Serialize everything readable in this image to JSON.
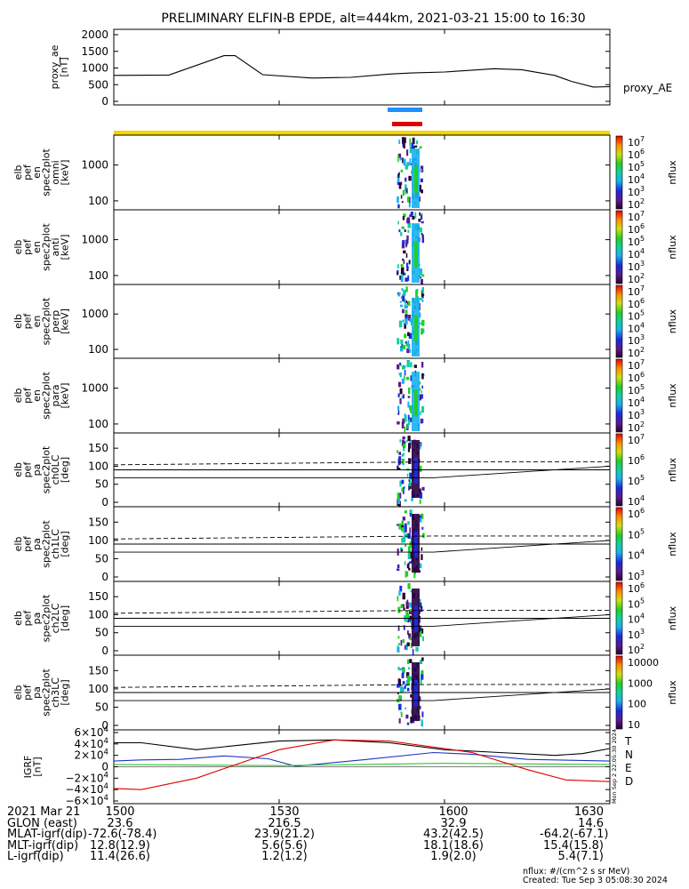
{
  "title": "PRELIMINARY ELFIN-B EPDE, alt=444km, 2021-03-21 15:00 to 16:30",
  "colors": {
    "blue_bar": "#1e90ff",
    "red_bar": "#e00000",
    "yellow_bar": "#f5d400",
    "igrf_T": "#000000",
    "igrf_N": "#1e33c8",
    "igrf_E": "#2ec52e",
    "igrf_D": "#e00000"
  },
  "chart_data": [
    {
      "id": "proxy_ae",
      "type": "line",
      "ylabel": "proxy_ae\n[nT]",
      "legend": "proxy_AE",
      "yticks": [
        "2000",
        "1500",
        "1000",
        "500",
        "0"
      ],
      "ylim": [
        0,
        2000
      ],
      "x_minutes": [
        0,
        10,
        20,
        22,
        27,
        36,
        43,
        50,
        54,
        60,
        69,
        74,
        80,
        83,
        87,
        90
      ],
      "values": [
        780,
        790,
        1370,
        1370,
        800,
        700,
        720,
        820,
        850,
        880,
        980,
        950,
        780,
        600,
        430,
        440
      ]
    },
    {
      "id": "spec_omni",
      "type": "heatmap",
      "ylabel": [
        "elb",
        "pef",
        "en",
        "spec2plot",
        "omni",
        "[keV]"
      ],
      "yticks": [
        "1000",
        "100"
      ],
      "scale": "log",
      "colorbar": {
        "label": "nflux",
        "ticks": [
          "10^7",
          "10^6",
          "10^5",
          "10^4",
          "10^3",
          "10^2"
        ]
      }
    },
    {
      "id": "spec_anti",
      "type": "heatmap",
      "ylabel": [
        "elb",
        "pef",
        "en",
        "spec2plot",
        "anti",
        "[keV]"
      ],
      "yticks": [
        "1000",
        "100"
      ],
      "scale": "log",
      "colorbar": {
        "label": "nflux",
        "ticks": [
          "10^7",
          "10^6",
          "10^5",
          "10^4",
          "10^3",
          "10^2"
        ]
      }
    },
    {
      "id": "spec_perp",
      "type": "heatmap",
      "ylabel": [
        "elb",
        "pef",
        "en",
        "spec2plot",
        "perp",
        "[keV]"
      ],
      "yticks": [
        "1000",
        "100"
      ],
      "scale": "log",
      "colorbar": {
        "label": "nflux",
        "ticks": [
          "10^7",
          "10^6",
          "10^5",
          "10^4",
          "10^3",
          "10^2"
        ]
      }
    },
    {
      "id": "spec_para",
      "type": "heatmap",
      "ylabel": [
        "elb",
        "pef",
        "en",
        "spec2plot",
        "para",
        "[keV]"
      ],
      "yticks": [
        "1000",
        "100"
      ],
      "scale": "log",
      "colorbar": {
        "label": "nflux",
        "ticks": [
          "10^7",
          "10^6",
          "10^5",
          "10^4",
          "10^3",
          "10^2"
        ]
      }
    },
    {
      "id": "pa_ch0",
      "type": "heatmap",
      "ylabel": [
        "elb",
        "pef",
        "pa",
        "spec2plot",
        "ch0LC",
        "[deg]"
      ],
      "yticks": [
        "150",
        "100",
        "50",
        "0"
      ],
      "colorbar": {
        "label": "nflux",
        "ticks": [
          "10^7",
          "10^6",
          "10^5",
          "10^4"
        ]
      }
    },
    {
      "id": "pa_ch1",
      "type": "heatmap",
      "ylabel": [
        "elb",
        "pef",
        "pa",
        "spec2plot",
        "ch1LC",
        "[deg]"
      ],
      "yticks": [
        "150",
        "100",
        "50",
        "0"
      ],
      "colorbar": {
        "label": "nflux",
        "ticks": [
          "10^6",
          "10^5",
          "10^4",
          "10^3"
        ]
      }
    },
    {
      "id": "pa_ch2",
      "type": "heatmap",
      "ylabel": [
        "elb",
        "pef",
        "pa",
        "spec2plot",
        "ch2LC",
        "[deg]"
      ],
      "yticks": [
        "150",
        "100",
        "50",
        "0"
      ],
      "colorbar": {
        "label": "nflux",
        "ticks": [
          "10^6",
          "10^5",
          "10^4",
          "10^3",
          "10^2"
        ]
      }
    },
    {
      "id": "pa_ch3",
      "type": "heatmap",
      "ylabel": [
        "elb",
        "pef",
        "pa",
        "spec2plot",
        "ch3LC",
        "[deg]"
      ],
      "yticks": [
        "150",
        "100",
        "50",
        "0"
      ],
      "colorbar": {
        "label": "nflux",
        "ticks": [
          "10000",
          "1000",
          "100",
          "10"
        ]
      }
    },
    {
      "id": "igrf",
      "type": "line",
      "ylabel": [
        "IGRF",
        "[nT]"
      ],
      "yticks": [
        "6×10^4",
        "4×10^4",
        "2×10^4",
        "0",
        "−2×10^4",
        "−4×10^4",
        "−6×10^4"
      ],
      "ylim": [
        -60000,
        60000
      ],
      "stamp": "Mon Sep 2 22:05:30 2024",
      "series": [
        {
          "name": "T",
          "x_minutes": [
            0,
            5,
            15,
            30,
            40,
            50,
            60,
            70,
            80,
            85,
            90
          ],
          "values": [
            42000,
            42000,
            30000,
            45000,
            47000,
            42000,
            30000,
            25000,
            20000,
            23000,
            32000
          ]
        },
        {
          "name": "N",
          "x_minutes": [
            0,
            5,
            12,
            20,
            28,
            33,
            45,
            58,
            65,
            75,
            90
          ],
          "values": [
            10000,
            12000,
            13000,
            19000,
            14000,
            1000,
            12000,
            25000,
            22000,
            13000,
            10000
          ]
        },
        {
          "name": "E",
          "x_minutes": [
            0,
            30,
            60,
            90
          ],
          "values": [
            4000,
            2000,
            6000,
            4000
          ]
        },
        {
          "name": "D",
          "x_minutes": [
            0,
            5,
            15,
            30,
            40,
            50,
            60,
            65,
            75,
            82,
            90
          ],
          "values": [
            -38000,
            -40000,
            -20000,
            30000,
            47000,
            45000,
            32000,
            25000,
            -5000,
            -23000,
            -26000
          ]
        }
      ]
    }
  ],
  "x_axis": {
    "ticks": [
      "1500",
      "1530",
      "1600",
      "1630"
    ],
    "tick_minutes": [
      0,
      30,
      60,
      90
    ]
  },
  "footer": {
    "rows": [
      {
        "label": "2021 Mar 21",
        "values": [
          "1500",
          "1530",
          "1600",
          "1630"
        ]
      },
      {
        "label": "GLON (east)",
        "values": [
          "23.6",
          "216.5",
          "32.9",
          "14.6"
        ]
      },
      {
        "label": "MLAT-igrf(dip)",
        "values": [
          "-72.6(-78.4)",
          "23.9(21.2)",
          "43.2(42.5)",
          "-64.2(-67.1)"
        ]
      },
      {
        "label": "MLT-igrf(dip)",
        "values": [
          "12.8(12.9)",
          "5.6(5.6)",
          "18.1(18.6)",
          "15.4(15.8)"
        ]
      },
      {
        "label": "L-igrf(dip)",
        "values": [
          "11.4(26.6)",
          "1.2(1.2)",
          "1.9(2.0)",
          "5.4(7.1)"
        ]
      }
    ],
    "note1": "nflux: #/(cm^2 s sr MeV)",
    "note2": "Created: Tue Sep  3 05:08:30 2024"
  }
}
